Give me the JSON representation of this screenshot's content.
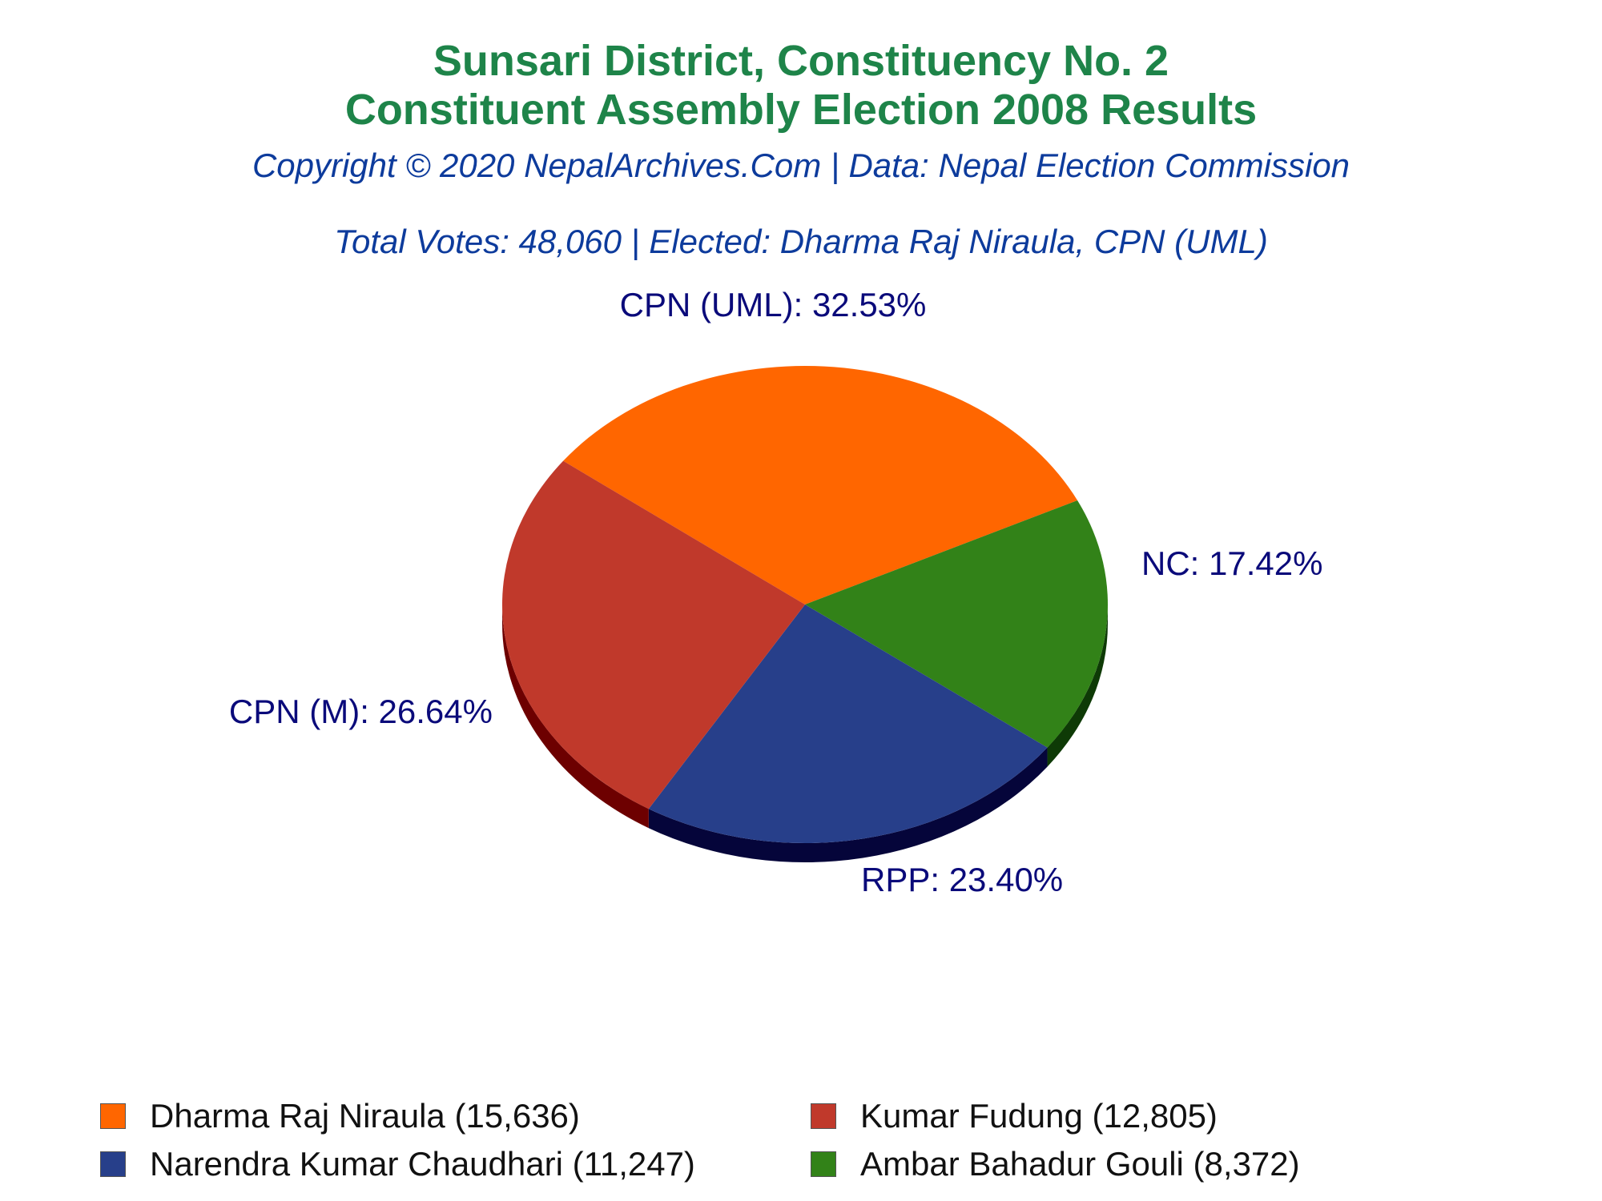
{
  "chart_data": {
    "type": "pie",
    "title": "Sunsari District, Constituency No. 2",
    "title2": "Constituent Assembly Election 2008 Results",
    "subtitle": "Copyright © 2020 NepalArchives.Com | Data: Nepal Election Commission",
    "summary": "Total Votes: 48,060 | Elected: Dharma Raj Niraula, CPN (UML)",
    "slices": [
      {
        "label": "CPN (UML): 32.53%",
        "value": 15636,
        "color": "#ff6600",
        "side": "#b34700"
      },
      {
        "label": "NC: 17.42%",
        "value": 8372,
        "color": "#328218",
        "side": "#0e3a06"
      },
      {
        "label": "RPP: 23.40%",
        "value": 11247,
        "color": "#273f8a",
        "side": "#05053a"
      },
      {
        "label": "CPN (M): 26.64%",
        "value": 12805,
        "color": "#c0392b",
        "side": "#6d0000"
      }
    ],
    "legend": [
      {
        "name": "Dharma Raj Niraula (15,636)",
        "color": "#ff6600"
      },
      {
        "name": "Kumar Fudung (12,805)",
        "color": "#c0392b"
      },
      {
        "name": "Narendra Kumar Chaudhari (11,247)",
        "color": "#273f8a"
      },
      {
        "name": "Ambar Bahadur Gouli (8,372)",
        "color": "#328218"
      }
    ]
  }
}
